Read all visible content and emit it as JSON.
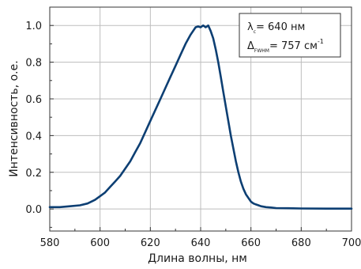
{
  "chart_data": {
    "type": "line",
    "xlabel": "Длина волны, нм",
    "ylabel": "Интенсивность, о.е.",
    "xlim": [
      580,
      700
    ],
    "ylim": [
      -0.12,
      1.1
    ],
    "x_ticks": [
      580,
      600,
      620,
      640,
      660,
      680,
      700
    ],
    "y_ticks": [
      0.0,
      0.2,
      0.4,
      0.6,
      0.8,
      1.0
    ],
    "x_tick_labels": [
      "580",
      "600",
      "620",
      "640",
      "660",
      "680",
      "700"
    ],
    "y_tick_labels": [
      "0.0",
      "0.2",
      "0.4",
      "0.6",
      "0.8",
      "1.0"
    ],
    "grid": true,
    "line_color": "#0d3f73",
    "annotation": {
      "line1_symbol": "λ",
      "line1_sub": "c",
      "line1_value": "= 640 нм",
      "line2_symbol": "Δ",
      "line2_sub": "FWHM",
      "line2_value": "= 757 см",
      "line2_sup": "-1"
    },
    "series": [
      {
        "x": [
          580,
          584,
          588,
          592,
          595,
          598,
          600,
          602,
          604,
          606,
          608,
          610,
          612,
          614,
          616,
          618,
          620,
          622,
          624,
          626,
          628,
          630,
          632,
          634,
          636,
          638,
          639,
          640,
          641,
          642,
          643,
          644,
          645,
          646,
          647,
          648,
          649,
          650,
          651,
          652,
          653,
          654,
          655,
          656,
          657,
          658,
          659,
          660,
          661,
          662,
          663,
          664,
          666,
          668,
          670,
          675,
          680,
          690,
          700
        ],
        "y": [
          0.01,
          0.01,
          0.015,
          0.02,
          0.03,
          0.05,
          0.07,
          0.09,
          0.12,
          0.15,
          0.18,
          0.22,
          0.26,
          0.31,
          0.36,
          0.42,
          0.48,
          0.54,
          0.6,
          0.66,
          0.72,
          0.78,
          0.84,
          0.9,
          0.95,
          0.99,
          0.995,
          0.99,
          1.0,
          0.99,
          1.0,
          0.97,
          0.93,
          0.87,
          0.8,
          0.72,
          0.64,
          0.56,
          0.48,
          0.4,
          0.33,
          0.26,
          0.2,
          0.15,
          0.11,
          0.08,
          0.06,
          0.04,
          0.03,
          0.025,
          0.02,
          0.015,
          0.01,
          0.008,
          0.005,
          0.004,
          0.003,
          0.002,
          0.002
        ]
      }
    ]
  }
}
